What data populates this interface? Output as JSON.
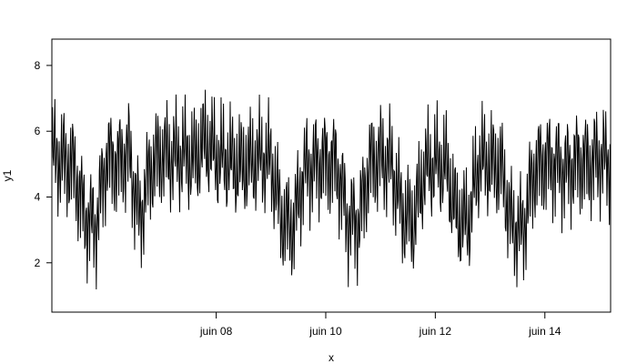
{
  "chart_data": {
    "type": "line",
    "xlabel": "x",
    "ylabel": "y1",
    "ylim": [
      0.5,
      8.8
    ],
    "x_ticks": [
      {
        "value": 8,
        "label": "juin 08"
      },
      {
        "value": 10,
        "label": "juin 10"
      },
      {
        "value": 12,
        "label": "juin 12"
      },
      {
        "value": 14,
        "label": "juin 14"
      }
    ],
    "y_ticks": [
      2,
      4,
      6,
      8
    ],
    "xlim": [
      5,
      15.2
    ],
    "grid": false,
    "legend": "none",
    "line_color": "#000000",
    "series": [
      {
        "x": [
          5.0,
          5.2,
          5.4,
          5.6,
          5.8,
          6.0,
          6.2,
          6.4,
          6.6,
          6.8,
          7.0,
          7.2,
          7.4,
          7.6,
          7.8,
          8.0,
          8.2,
          8.4,
          8.6,
          8.8,
          9.0,
          9.2,
          9.4,
          9.6,
          9.8,
          10.0,
          10.2,
          10.4,
          10.6,
          10.8,
          11.0,
          11.2,
          11.4,
          11.6,
          11.8,
          12.0,
          12.2,
          12.4,
          12.6,
          12.8,
          13.0,
          13.2,
          13.4,
          13.6,
          13.8,
          14.0,
          14.2,
          14.4,
          14.6,
          14.8,
          15.0,
          15.2
        ],
        "y": [
          5.3,
          5.1,
          4.9,
          3.4,
          3.1,
          5.2,
          5.0,
          5.4,
          3.3,
          4.9,
          5.3,
          5.2,
          5.3,
          5.1,
          5.7,
          5.2,
          5.1,
          4.9,
          5.0,
          5.2,
          5.1,
          3.3,
          3.1,
          4.8,
          5.0,
          5.1,
          5.0,
          3.3,
          3.2,
          5.0,
          5.2,
          5.0,
          3.5,
          3.2,
          4.8,
          5.0,
          4.9,
          3.3,
          3.2,
          5.1,
          5.0,
          4.9,
          3.1,
          3.0,
          4.8,
          5.1,
          5.0,
          4.8,
          5.1,
          5.0,
          5.2,
          5.0
        ]
      }
    ]
  }
}
